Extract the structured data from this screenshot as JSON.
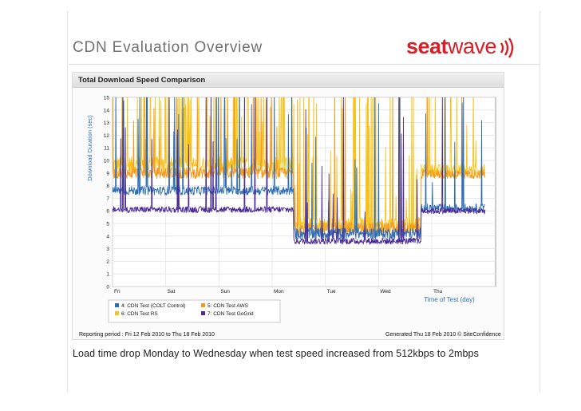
{
  "slide": {
    "title": "CDN Evaluation Overview",
    "logo_part1": "seat",
    "logo_part2": "wave",
    "caption": "Load time drop Monday to Wednesday when test speed increased from 512kbps to 2mbps"
  },
  "panel": {
    "title": "Total Download Speed Comparison",
    "reporting_period": "Reporting period : Fri 12 Feb 2010 to Thu 18 Feb 2010",
    "generated": "Generated Thu 18 Feb 2010 © SiteConfidence"
  },
  "colors": {
    "brand_red": "#d61f26",
    "series_4": "#2e6db4",
    "series_5": "#f39a1c",
    "series_6": "#f6c21c",
    "series_7": "#4a2a96"
  },
  "chart_data": {
    "type": "line",
    "title": "Total Download Speed Comparison",
    "xlabel": "Time of Test (day)",
    "ylabel": "Download Duration (sec)",
    "ylim": [
      0,
      15
    ],
    "yticks": [
      "0",
      "1",
      "2",
      "3",
      "4",
      "5",
      "6",
      "7",
      "8",
      "9",
      "10",
      "11",
      "12",
      "13",
      "14",
      "15"
    ],
    "xticks": [
      "Fri",
      "Sat",
      "Sun",
      "Mon",
      "Tue",
      "Wed",
      "Thu"
    ],
    "grid": true,
    "legend_position": "bottom",
    "phases_x": [
      0,
      3.4,
      5.8,
      7.0
    ],
    "series": [
      {
        "name": "4: CDN Test (COLT Control)",
        "color": "#2e6db4",
        "baseline": [
          7.6,
          4.2,
          6.2
        ],
        "noise": [
          0.35,
          0.45,
          0.35
        ],
        "spikes": [
          16,
          8,
          6
        ]
      },
      {
        "name": "5: CDN Test AWS",
        "color": "#f39a1c",
        "baseline": [
          9.0,
          4.6,
          8.9
        ],
        "noise": [
          0.45,
          0.5,
          0.35
        ],
        "spikes": [
          26,
          8,
          4
        ]
      },
      {
        "name": "6: CDN Test RS",
        "color": "#f6c21c",
        "baseline": [
          9.6,
          4.9,
          9.2
        ],
        "noise": [
          0.7,
          0.6,
          0.5
        ],
        "spikes": [
          60,
          40,
          10
        ]
      },
      {
        "name": "7: CDN Test GoGrid",
        "color": "#4a2a96",
        "baseline": [
          6.1,
          3.6,
          6.0
        ],
        "noise": [
          0.25,
          0.25,
          0.25
        ],
        "spikes": [
          10,
          8,
          2
        ]
      }
    ]
  }
}
